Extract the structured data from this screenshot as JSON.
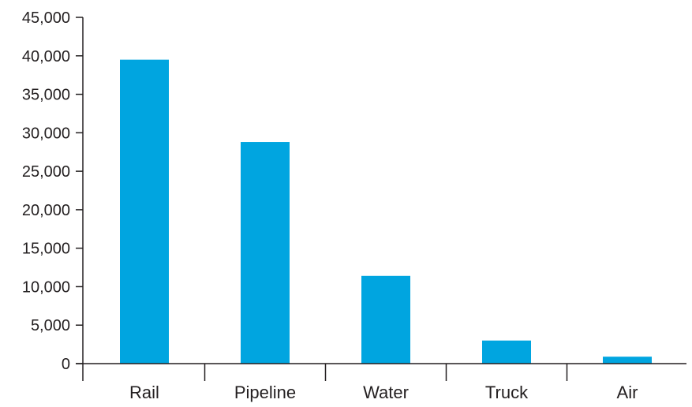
{
  "chart_data": {
    "type": "bar",
    "categories": [
      "Rail",
      "Pipeline",
      "Water",
      "Truck",
      "Air"
    ],
    "values": [
      39500,
      28800,
      11400,
      3000,
      900
    ],
    "ylim": [
      0,
      45000
    ],
    "yticks": [
      0,
      5000,
      10000,
      15000,
      20000,
      25000,
      30000,
      35000,
      40000,
      45000
    ],
    "ytick_labels": [
      "0",
      "5,000",
      "10,000",
      "15,000",
      "20,000",
      "25,000",
      "30,000",
      "35,000",
      "40,000",
      "45,000"
    ],
    "title": "",
    "xlabel": "",
    "ylabel": "",
    "grid": false,
    "legend": "none",
    "bar_color": "#00a5e0",
    "axis_color": "#231f20"
  }
}
